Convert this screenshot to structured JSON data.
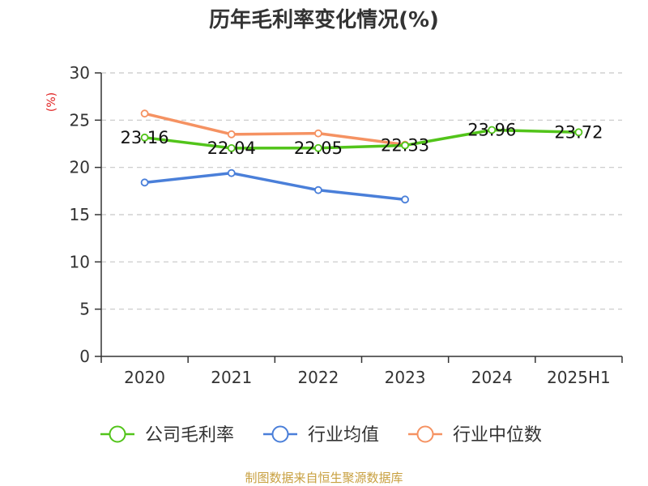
{
  "title": "历年毛利率变化情况(%)",
  "source": "制图数据来自恒生聚源数据库",
  "chart_data": {
    "type": "line",
    "title": "历年毛利率变化情况(%)",
    "ylabel": "(%)",
    "xlabel": "",
    "categories": [
      "2020",
      "2021",
      "2022",
      "2023",
      "2024",
      "2025H1"
    ],
    "ylim": [
      0,
      30
    ],
    "yticks": [
      0,
      5,
      10,
      15,
      20,
      25,
      30
    ],
    "grid": "horizontal-dashed",
    "legend_position": "bottom",
    "series": [
      {
        "name": "公司毛利率",
        "color": "#52c41a",
        "values": [
          23.16,
          22.04,
          22.05,
          22.33,
          23.96,
          23.72
        ],
        "labels": [
          "23.16",
          "22.04",
          "22.05",
          "22.33",
          "23.96",
          "23.72"
        ]
      },
      {
        "name": "行业均值",
        "color": "#4a7fd9",
        "values": [
          18.4,
          19.4,
          17.6,
          16.6,
          null,
          null
        ]
      },
      {
        "name": "行业中位数",
        "color": "#f59262",
        "values": [
          25.7,
          23.5,
          23.6,
          22.4,
          null,
          null
        ]
      }
    ]
  }
}
